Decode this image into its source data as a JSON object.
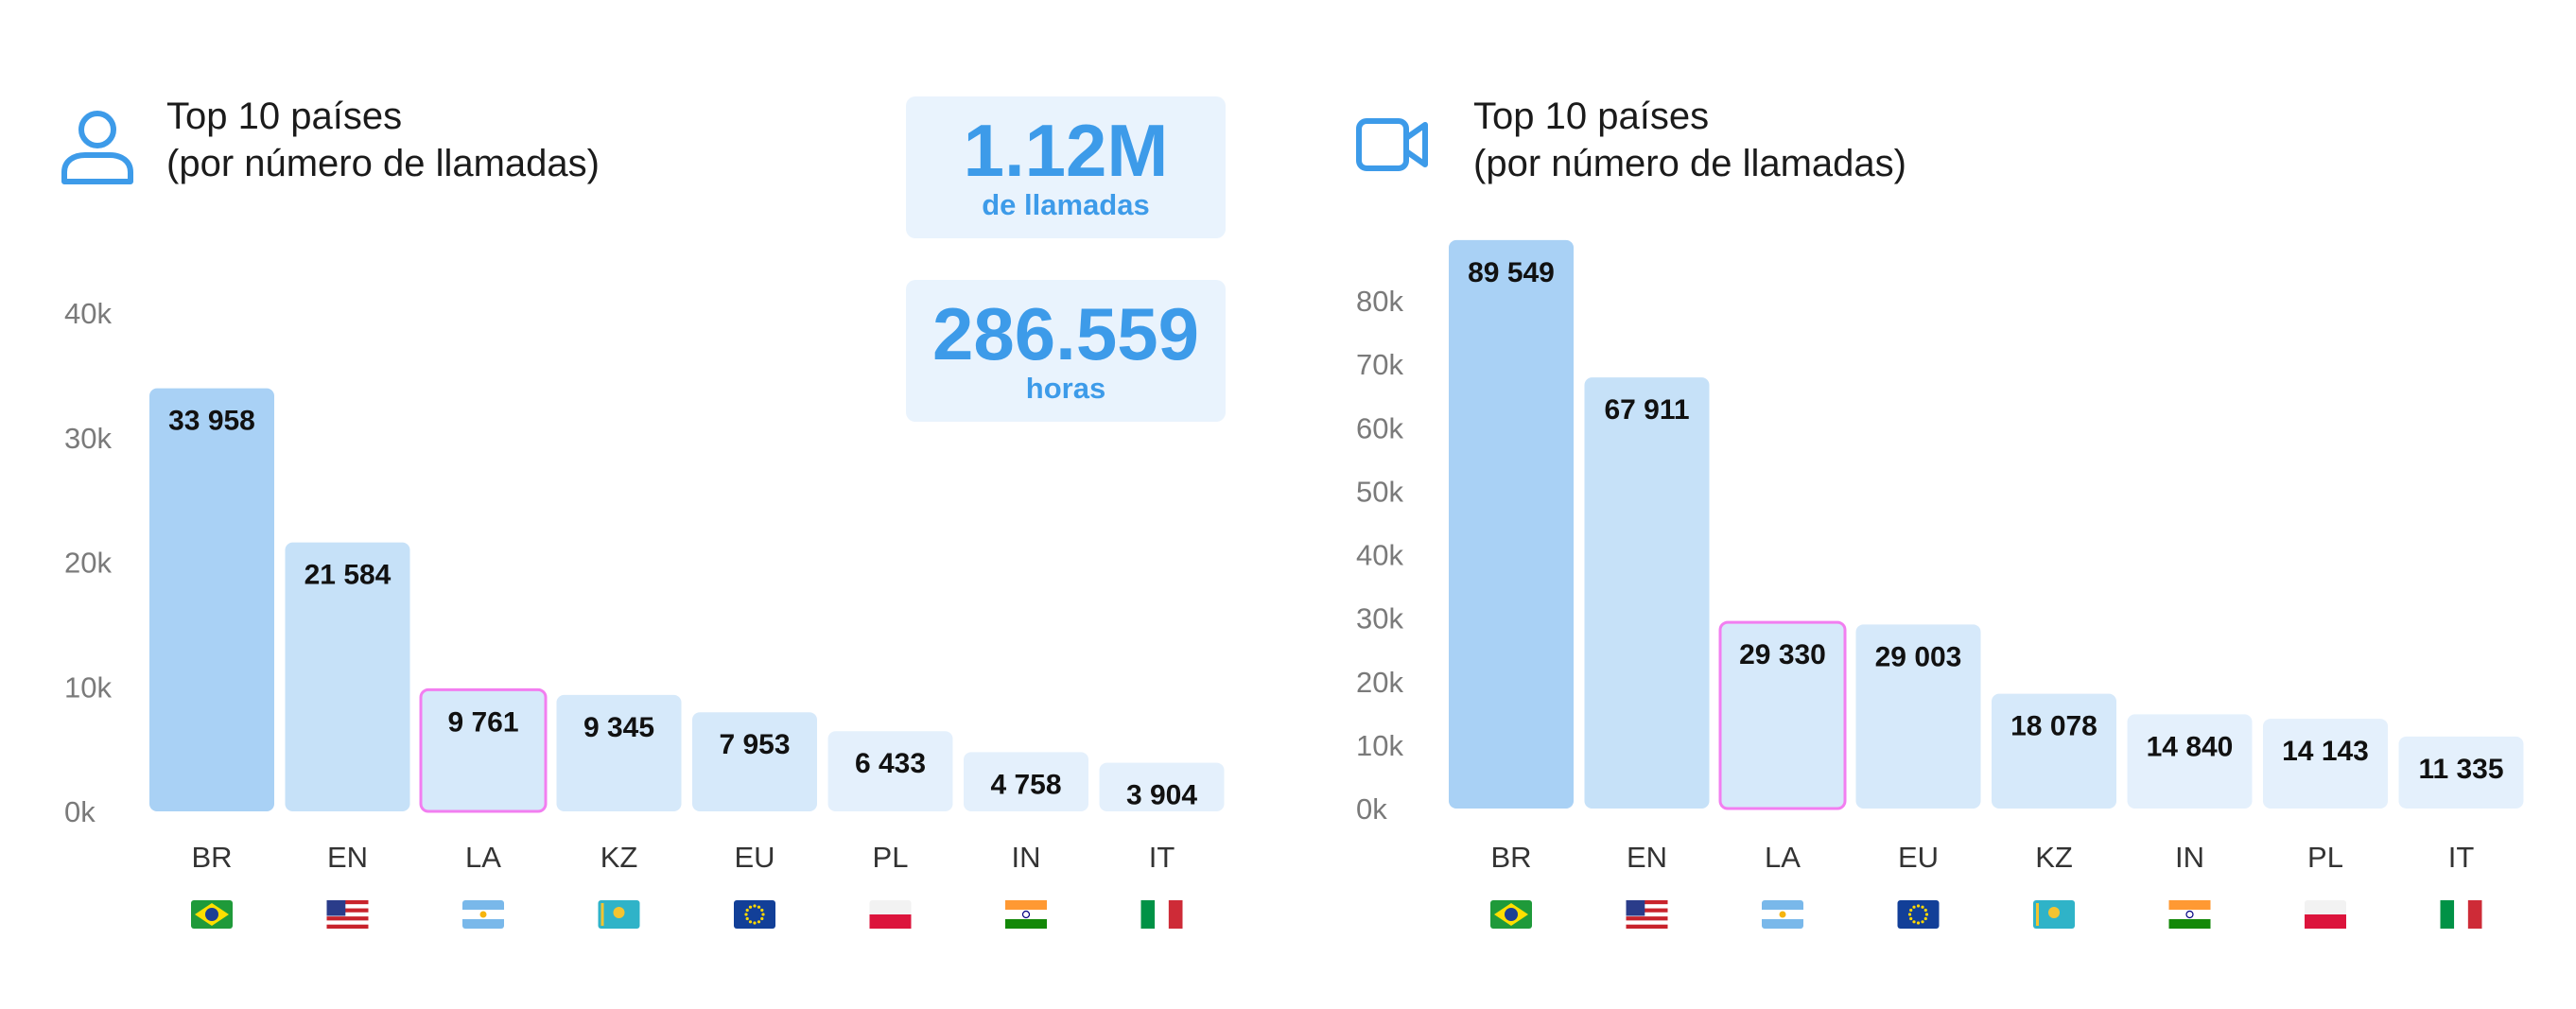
{
  "colors": {
    "accent": "#3d9be9",
    "bar_top": "#a9d1f5",
    "bar_high": "#c6e1f8",
    "bar_mid": "#d6e9fa",
    "bar_low": "#e4f0fc",
    "highlight_border": "#f27ef0"
  },
  "panels": [
    {
      "icon": "user-icon",
      "title_line1": "Top 10 países",
      "title_line2": "(por número de llamadas)",
      "stats": [
        {
          "value": "1.12M",
          "label": "de llamadas"
        },
        {
          "value": "286.559",
          "label": "horas"
        }
      ]
    },
    {
      "icon": "video-camera-icon",
      "title_line1": "Top 10 países",
      "title_line2": "(por número de llamadas)",
      "stats": []
    }
  ],
  "chart_data": [
    {
      "type": "bar",
      "categories": [
        "BR",
        "EN",
        "LA",
        "KZ",
        "EU",
        "PL",
        "IN",
        "IT"
      ],
      "values": [
        33958,
        21584,
        9761,
        9345,
        7953,
        6433,
        4758,
        3904
      ],
      "value_labels": [
        "33 958",
        "21 584",
        "9 761",
        "9 345",
        "7 953",
        "6 433",
        "4 758",
        "3 904"
      ],
      "flags": [
        "BR",
        "US",
        "AR",
        "KZ",
        "EU",
        "PL",
        "IN",
        "IT"
      ],
      "highlight": "LA",
      "yticks": [
        0,
        10000,
        20000,
        30000,
        40000
      ],
      "ytick_labels": [
        "0k",
        "10k",
        "20k",
        "30k",
        "40k"
      ],
      "ylim": [
        0,
        40000
      ],
      "grid": false,
      "legend": "none"
    },
    {
      "type": "bar",
      "categories": [
        "BR",
        "EN",
        "LA",
        "EU",
        "KZ",
        "IN",
        "PL",
        "IT"
      ],
      "values": [
        89549,
        67911,
        29330,
        29003,
        18078,
        14840,
        14143,
        11335
      ],
      "value_labels": [
        "89 549",
        "67 911",
        "29 330",
        "29 003",
        "18 078",
        "14 840",
        "14 143",
        "11 335"
      ],
      "flags": [
        "BR",
        "US",
        "AR",
        "EU",
        "KZ",
        "IN",
        "PL",
        "IT"
      ],
      "highlight": "LA",
      "yticks": [
        0,
        10000,
        20000,
        30000,
        40000,
        50000,
        60000,
        70000,
        80000
      ],
      "ytick_labels": [
        "0k",
        "10k",
        "20k",
        "30k",
        "40k",
        "50k",
        "60k",
        "70k",
        "80k"
      ],
      "ylim": [
        0,
        80000
      ],
      "grid": false,
      "legend": "none"
    }
  ]
}
